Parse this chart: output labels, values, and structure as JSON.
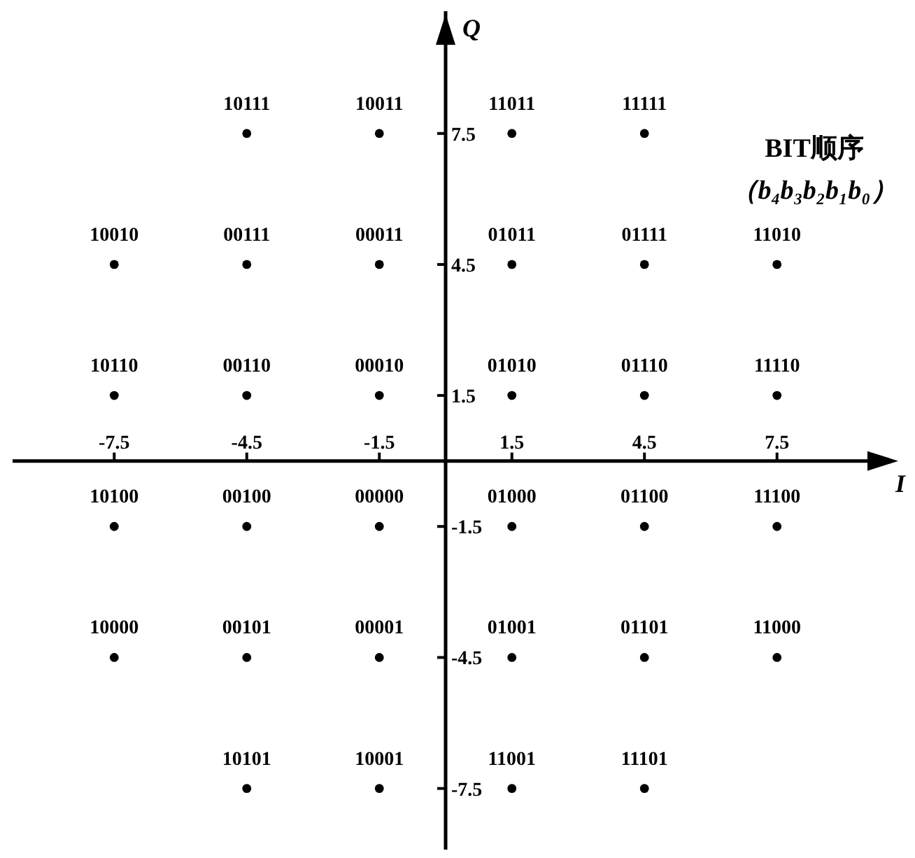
{
  "chart_data": {
    "type": "scatter",
    "xlabel": "I",
    "ylabel": "Q",
    "xlim": [
      -9.8,
      9.8
    ],
    "ylim": [
      -8.9,
      10.3
    ],
    "xticks": [
      -7.5,
      -4.5,
      -1.5,
      1.5,
      4.5,
      7.5
    ],
    "yticks": [
      -7.5,
      -4.5,
      -1.5,
      1.5,
      4.5,
      7.5
    ],
    "marker": "circle",
    "grid": false,
    "legend": false,
    "annotations": [
      "BIT顺序",
      "（b₄b₃b₂b₁b₀）",
      {
        "text": "10111",
        "x": -4.5,
        "y": 7.5
      },
      {
        "text": "10011",
        "x": -1.5,
        "y": 7.5
      },
      {
        "text": "11011",
        "x": 1.5,
        "y": 7.5
      },
      {
        "text": "11111",
        "x": 4.5,
        "y": 7.5
      },
      {
        "text": "10010",
        "x": -7.5,
        "y": 4.5
      },
      {
        "text": "00111",
        "x": -4.5,
        "y": 4.5
      },
      {
        "text": "00011",
        "x": -1.5,
        "y": 4.5
      },
      {
        "text": "01011",
        "x": 1.5,
        "y": 4.5
      },
      {
        "text": "01111",
        "x": 4.5,
        "y": 4.5
      },
      {
        "text": "11010",
        "x": 7.5,
        "y": 4.5
      },
      {
        "text": "10110",
        "x": -7.5,
        "y": 1.5
      },
      {
        "text": "00110",
        "x": -4.5,
        "y": 1.5
      },
      {
        "text": "00010",
        "x": -1.5,
        "y": 1.5
      },
      {
        "text": "01010",
        "x": 1.5,
        "y": 1.5
      },
      {
        "text": "01110",
        "x": 4.5,
        "y": 1.5
      },
      {
        "text": "11110",
        "x": 7.5,
        "y": 1.5
      },
      {
        "text": "10100",
        "x": -7.5,
        "y": -1.5
      },
      {
        "text": "00100",
        "x": -4.5,
        "y": -1.5
      },
      {
        "text": "00000",
        "x": -1.5,
        "y": -1.5
      },
      {
        "text": "01000",
        "x": 1.5,
        "y": -1.5
      },
      {
        "text": "01100",
        "x": 4.5,
        "y": -1.5
      },
      {
        "text": "11100",
        "x": 7.5,
        "y": -1.5
      },
      {
        "text": "10000",
        "x": -7.5,
        "y": -4.5
      },
      {
        "text": "00101",
        "x": -4.5,
        "y": -4.5
      },
      {
        "text": "00001",
        "x": -1.5,
        "y": -4.5
      },
      {
        "text": "01001",
        "x": 1.5,
        "y": -4.5
      },
      {
        "text": "01101",
        "x": 4.5,
        "y": -4.5
      },
      {
        "text": "11000",
        "x": 7.5,
        "y": -4.5
      },
      {
        "text": "10101",
        "x": -4.5,
        "y": -7.5
      },
      {
        "text": "10001",
        "x": -1.5,
        "y": -7.5
      },
      {
        "text": "11001",
        "x": 1.5,
        "y": -7.5
      },
      {
        "text": "11101",
        "x": 4.5,
        "y": -7.5
      }
    ],
    "series": [
      {
        "color": "#000000",
        "x": [
          -4.5,
          -1.5,
          1.5,
          4.5,
          -7.5,
          -4.5,
          -1.5,
          1.5,
          4.5,
          7.5,
          -7.5,
          -4.5,
          -1.5,
          1.5,
          4.5,
          7.5,
          -7.5,
          -4.5,
          -1.5,
          1.5,
          4.5,
          7.5,
          -7.5,
          -4.5,
          -1.5,
          1.5,
          4.5,
          7.5,
          -4.5,
          -1.5,
          1.5,
          4.5
        ],
        "values": [
          7.5,
          7.5,
          7.5,
          7.5,
          4.5,
          4.5,
          4.5,
          4.5,
          4.5,
          4.5,
          1.5,
          1.5,
          1.5,
          1.5,
          1.5,
          1.5,
          -1.5,
          -1.5,
          -1.5,
          -1.5,
          -1.5,
          -1.5,
          -4.5,
          -4.5,
          -4.5,
          -4.5,
          -4.5,
          -4.5,
          -7.5,
          -7.5,
          -7.5,
          -7.5
        ]
      }
    ]
  }
}
